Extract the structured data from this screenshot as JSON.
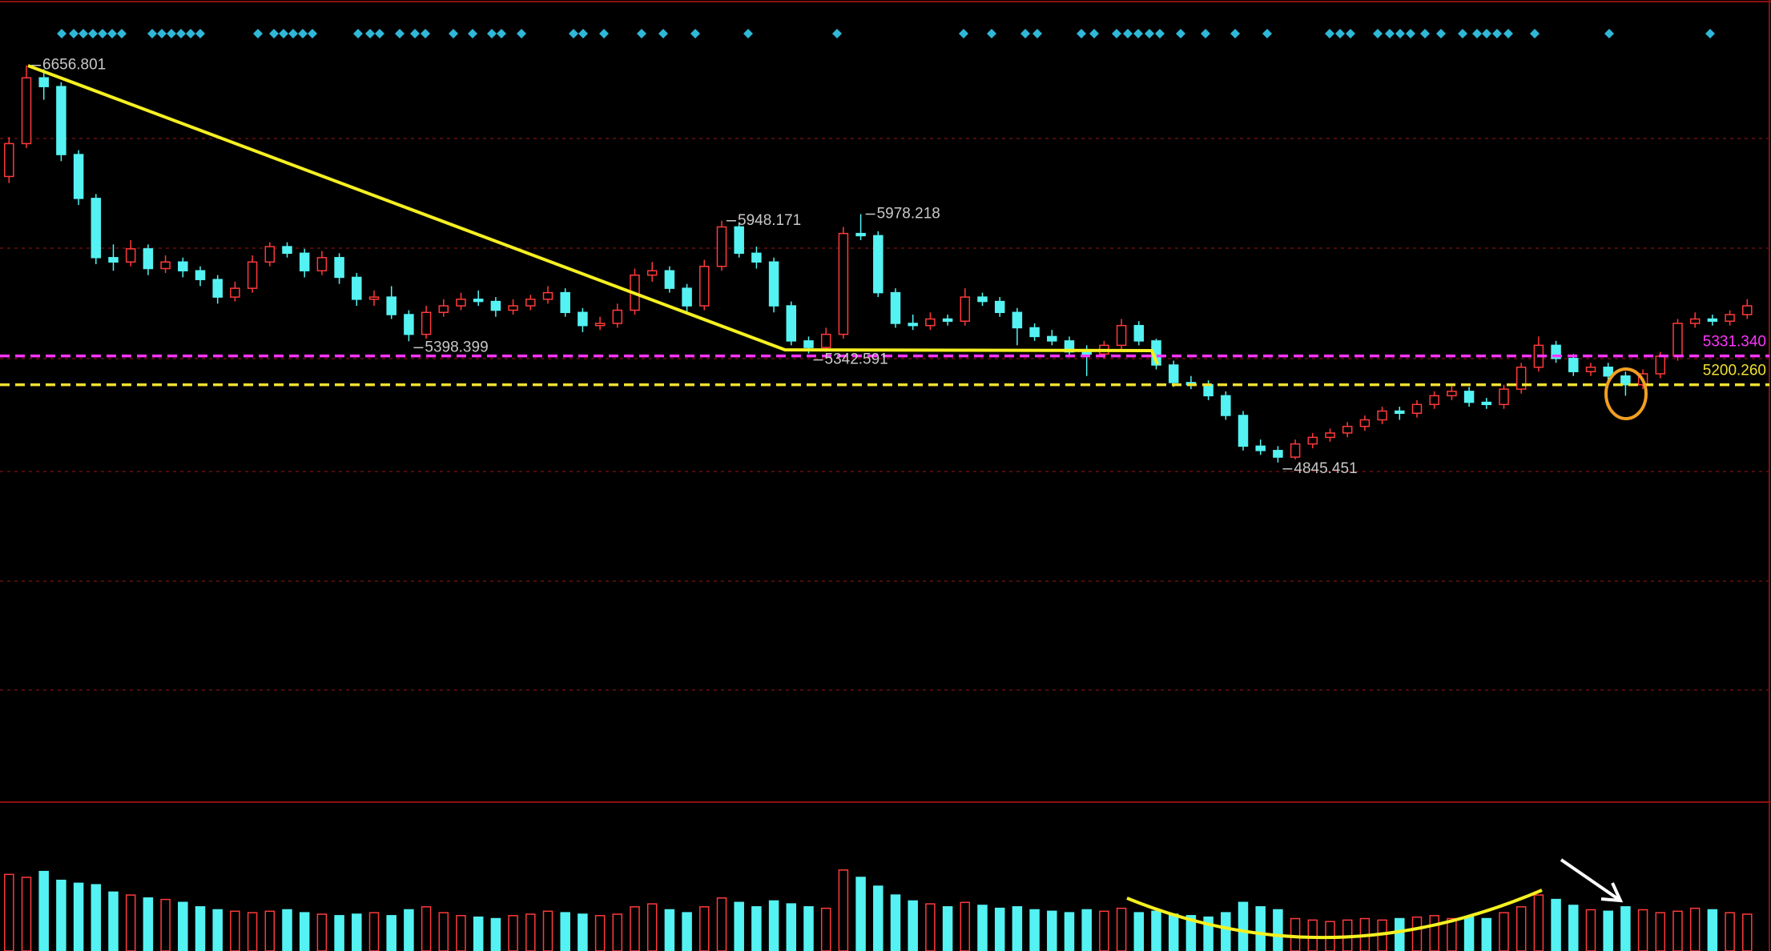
{
  "chart_data": {
    "type": "candlestick",
    "ylim": [
      3300,
      6955
    ],
    "up_color": "#ff3a3a",
    "down_color": "#54f2f2",
    "candles": [
      [
        6150,
        6330,
        6120,
        6300
      ],
      [
        6300,
        6656.801,
        6280,
        6600
      ],
      [
        6600,
        6640,
        6500,
        6560
      ],
      [
        6560,
        6580,
        6220,
        6250
      ],
      [
        6250,
        6270,
        6020,
        6050
      ],
      [
        6050,
        6070,
        5750,
        5780
      ],
      [
        5780,
        5840,
        5720,
        5760
      ],
      [
        5760,
        5860,
        5740,
        5820
      ],
      [
        5820,
        5840,
        5700,
        5730
      ],
      [
        5730,
        5790,
        5710,
        5760
      ],
      [
        5760,
        5780,
        5690,
        5720
      ],
      [
        5720,
        5740,
        5650,
        5680
      ],
      [
        5680,
        5700,
        5570,
        5600
      ],
      [
        5600,
        5670,
        5580,
        5640
      ],
      [
        5640,
        5790,
        5620,
        5760
      ],
      [
        5760,
        5850,
        5740,
        5830
      ],
      [
        5830,
        5850,
        5780,
        5800
      ],
      [
        5800,
        5820,
        5690,
        5720
      ],
      [
        5720,
        5810,
        5700,
        5780
      ],
      [
        5780,
        5800,
        5660,
        5690
      ],
      [
        5690,
        5710,
        5560,
        5590
      ],
      [
        5590,
        5630,
        5560,
        5600
      ],
      [
        5600,
        5650,
        5500,
        5520
      ],
      [
        5520,
        5540,
        5398.399,
        5430
      ],
      [
        5430,
        5560,
        5410,
        5530
      ],
      [
        5530,
        5590,
        5510,
        5560
      ],
      [
        5560,
        5620,
        5540,
        5590
      ],
      [
        5590,
        5630,
        5560,
        5580
      ],
      [
        5580,
        5600,
        5510,
        5540
      ],
      [
        5540,
        5590,
        5520,
        5560
      ],
      [
        5560,
        5610,
        5540,
        5590
      ],
      [
        5590,
        5650,
        5570,
        5620
      ],
      [
        5620,
        5640,
        5510,
        5530
      ],
      [
        5530,
        5550,
        5440,
        5470
      ],
      [
        5470,
        5510,
        5450,
        5480
      ],
      [
        5480,
        5570,
        5460,
        5540
      ],
      [
        5540,
        5730,
        5520,
        5700
      ],
      [
        5700,
        5760,
        5670,
        5720
      ],
      [
        5720,
        5740,
        5620,
        5640
      ],
      [
        5640,
        5660,
        5530,
        5560
      ],
      [
        5560,
        5770,
        5540,
        5740
      ],
      [
        5740,
        5948.171,
        5720,
        5920
      ],
      [
        5920,
        5940,
        5780,
        5800
      ],
      [
        5800,
        5830,
        5730,
        5760
      ],
      [
        5760,
        5780,
        5530,
        5560
      ],
      [
        5560,
        5580,
        5380,
        5400
      ],
      [
        5400,
        5420,
        5342.591,
        5370
      ],
      [
        5370,
        5460,
        5350,
        5430
      ],
      [
        5430,
        5920,
        5410,
        5890
      ],
      [
        5890,
        5978.218,
        5860,
        5880
      ],
      [
        5880,
        5900,
        5600,
        5620
      ],
      [
        5620,
        5640,
        5460,
        5480
      ],
      [
        5480,
        5520,
        5450,
        5470
      ],
      [
        5470,
        5530,
        5450,
        5500
      ],
      [
        5500,
        5520,
        5470,
        5490
      ],
      [
        5490,
        5640,
        5470,
        5600
      ],
      [
        5600,
        5620,
        5560,
        5580
      ],
      [
        5580,
        5600,
        5510,
        5530
      ],
      [
        5530,
        5550,
        5380,
        5460
      ],
      [
        5460,
        5480,
        5400,
        5420
      ],
      [
        5420,
        5450,
        5380,
        5400
      ],
      [
        5400,
        5420,
        5330,
        5350
      ],
      [
        5350,
        5380,
        5240,
        5340
      ],
      [
        5340,
        5400,
        5320,
        5380
      ],
      [
        5380,
        5500,
        5360,
        5470
      ],
      [
        5470,
        5490,
        5380,
        5400
      ],
      [
        5400,
        5410,
        5270,
        5290
      ],
      [
        5290,
        5310,
        5190,
        5210
      ],
      [
        5210,
        5240,
        5180,
        5200
      ],
      [
        5200,
        5220,
        5130,
        5150
      ],
      [
        5150,
        5170,
        5040,
        5060
      ],
      [
        5060,
        5080,
        4900,
        4920
      ],
      [
        4920,
        4950,
        4880,
        4900
      ],
      [
        4900,
        4920,
        4845.451,
        4870
      ],
      [
        4870,
        4950,
        4860,
        4930
      ],
      [
        4930,
        4980,
        4910,
        4960
      ],
      [
        4960,
        5000,
        4940,
        4980
      ],
      [
        4980,
        5030,
        4960,
        5010
      ],
      [
        5010,
        5060,
        4990,
        5040
      ],
      [
        5040,
        5100,
        5020,
        5080
      ],
      [
        5080,
        5100,
        5040,
        5070
      ],
      [
        5070,
        5130,
        5050,
        5110
      ],
      [
        5110,
        5170,
        5090,
        5150
      ],
      [
        5150,
        5200,
        5130,
        5170
      ],
      [
        5170,
        5190,
        5100,
        5120
      ],
      [
        5120,
        5140,
        5090,
        5110
      ],
      [
        5110,
        5200,
        5090,
        5180
      ],
      [
        5180,
        5300,
        5160,
        5280
      ],
      [
        5280,
        5420,
        5260,
        5380
      ],
      [
        5380,
        5400,
        5300,
        5320
      ],
      [
        5320,
        5340,
        5240,
        5260
      ],
      [
        5260,
        5300,
        5240,
        5280
      ],
      [
        5280,
        5300,
        5220,
        5240
      ],
      [
        5240,
        5260,
        5150,
        5200
      ],
      [
        5200,
        5270,
        5180,
        5250
      ],
      [
        5250,
        5350,
        5230,
        5330
      ],
      [
        5330,
        5500,
        5310,
        5480
      ],
      [
        5480,
        5530,
        5460,
        5500
      ],
      [
        5500,
        5520,
        5470,
        5490
      ],
      [
        5490,
        5540,
        5470,
        5520
      ],
      [
        5520,
        5590,
        5500,
        5560
      ]
    ],
    "volume": {
      "vlim": [
        0,
        100
      ],
      "values": [
        52,
        50,
        54,
        48,
        46,
        45,
        40,
        38,
        36,
        35,
        33,
        30,
        28,
        27,
        26,
        27,
        28,
        26,
        25,
        24,
        25,
        26,
        24,
        28,
        30,
        26,
        24,
        23,
        22,
        24,
        25,
        27,
        26,
        25,
        24,
        25,
        30,
        32,
        28,
        26,
        30,
        36,
        33,
        30,
        34,
        32,
        30,
        29,
        55,
        50,
        44,
        38,
        34,
        32,
        30,
        33,
        31,
        29,
        30,
        28,
        27,
        26,
        28,
        27,
        29,
        26,
        27,
        25,
        24,
        23,
        26,
        33,
        30,
        28,
        22,
        21,
        20,
        21,
        22,
        21,
        22,
        23,
        24,
        22,
        23,
        22,
        26,
        30,
        38,
        35,
        31,
        28,
        27,
        30,
        28,
        26,
        27,
        29,
        28,
        26,
        25
      ]
    },
    "levels": [
      {
        "value": 5331.34,
        "label": "5331.340",
        "color": "#ff33ff"
      },
      {
        "value": 5200.26,
        "label": "5200.260",
        "color": "#f0e030"
      }
    ],
    "annotations": [
      {
        "value": 6656.801,
        "label": "6656.801"
      },
      {
        "value": 5948.171,
        "label": "5948.171"
      },
      {
        "value": 5978.218,
        "label": "5978.218"
      },
      {
        "value": 5398.399,
        "label": "5398.399"
      },
      {
        "value": 5342.591,
        "label": "5342.591"
      },
      {
        "value": 4845.451,
        "label": "4845.451"
      }
    ]
  }
}
